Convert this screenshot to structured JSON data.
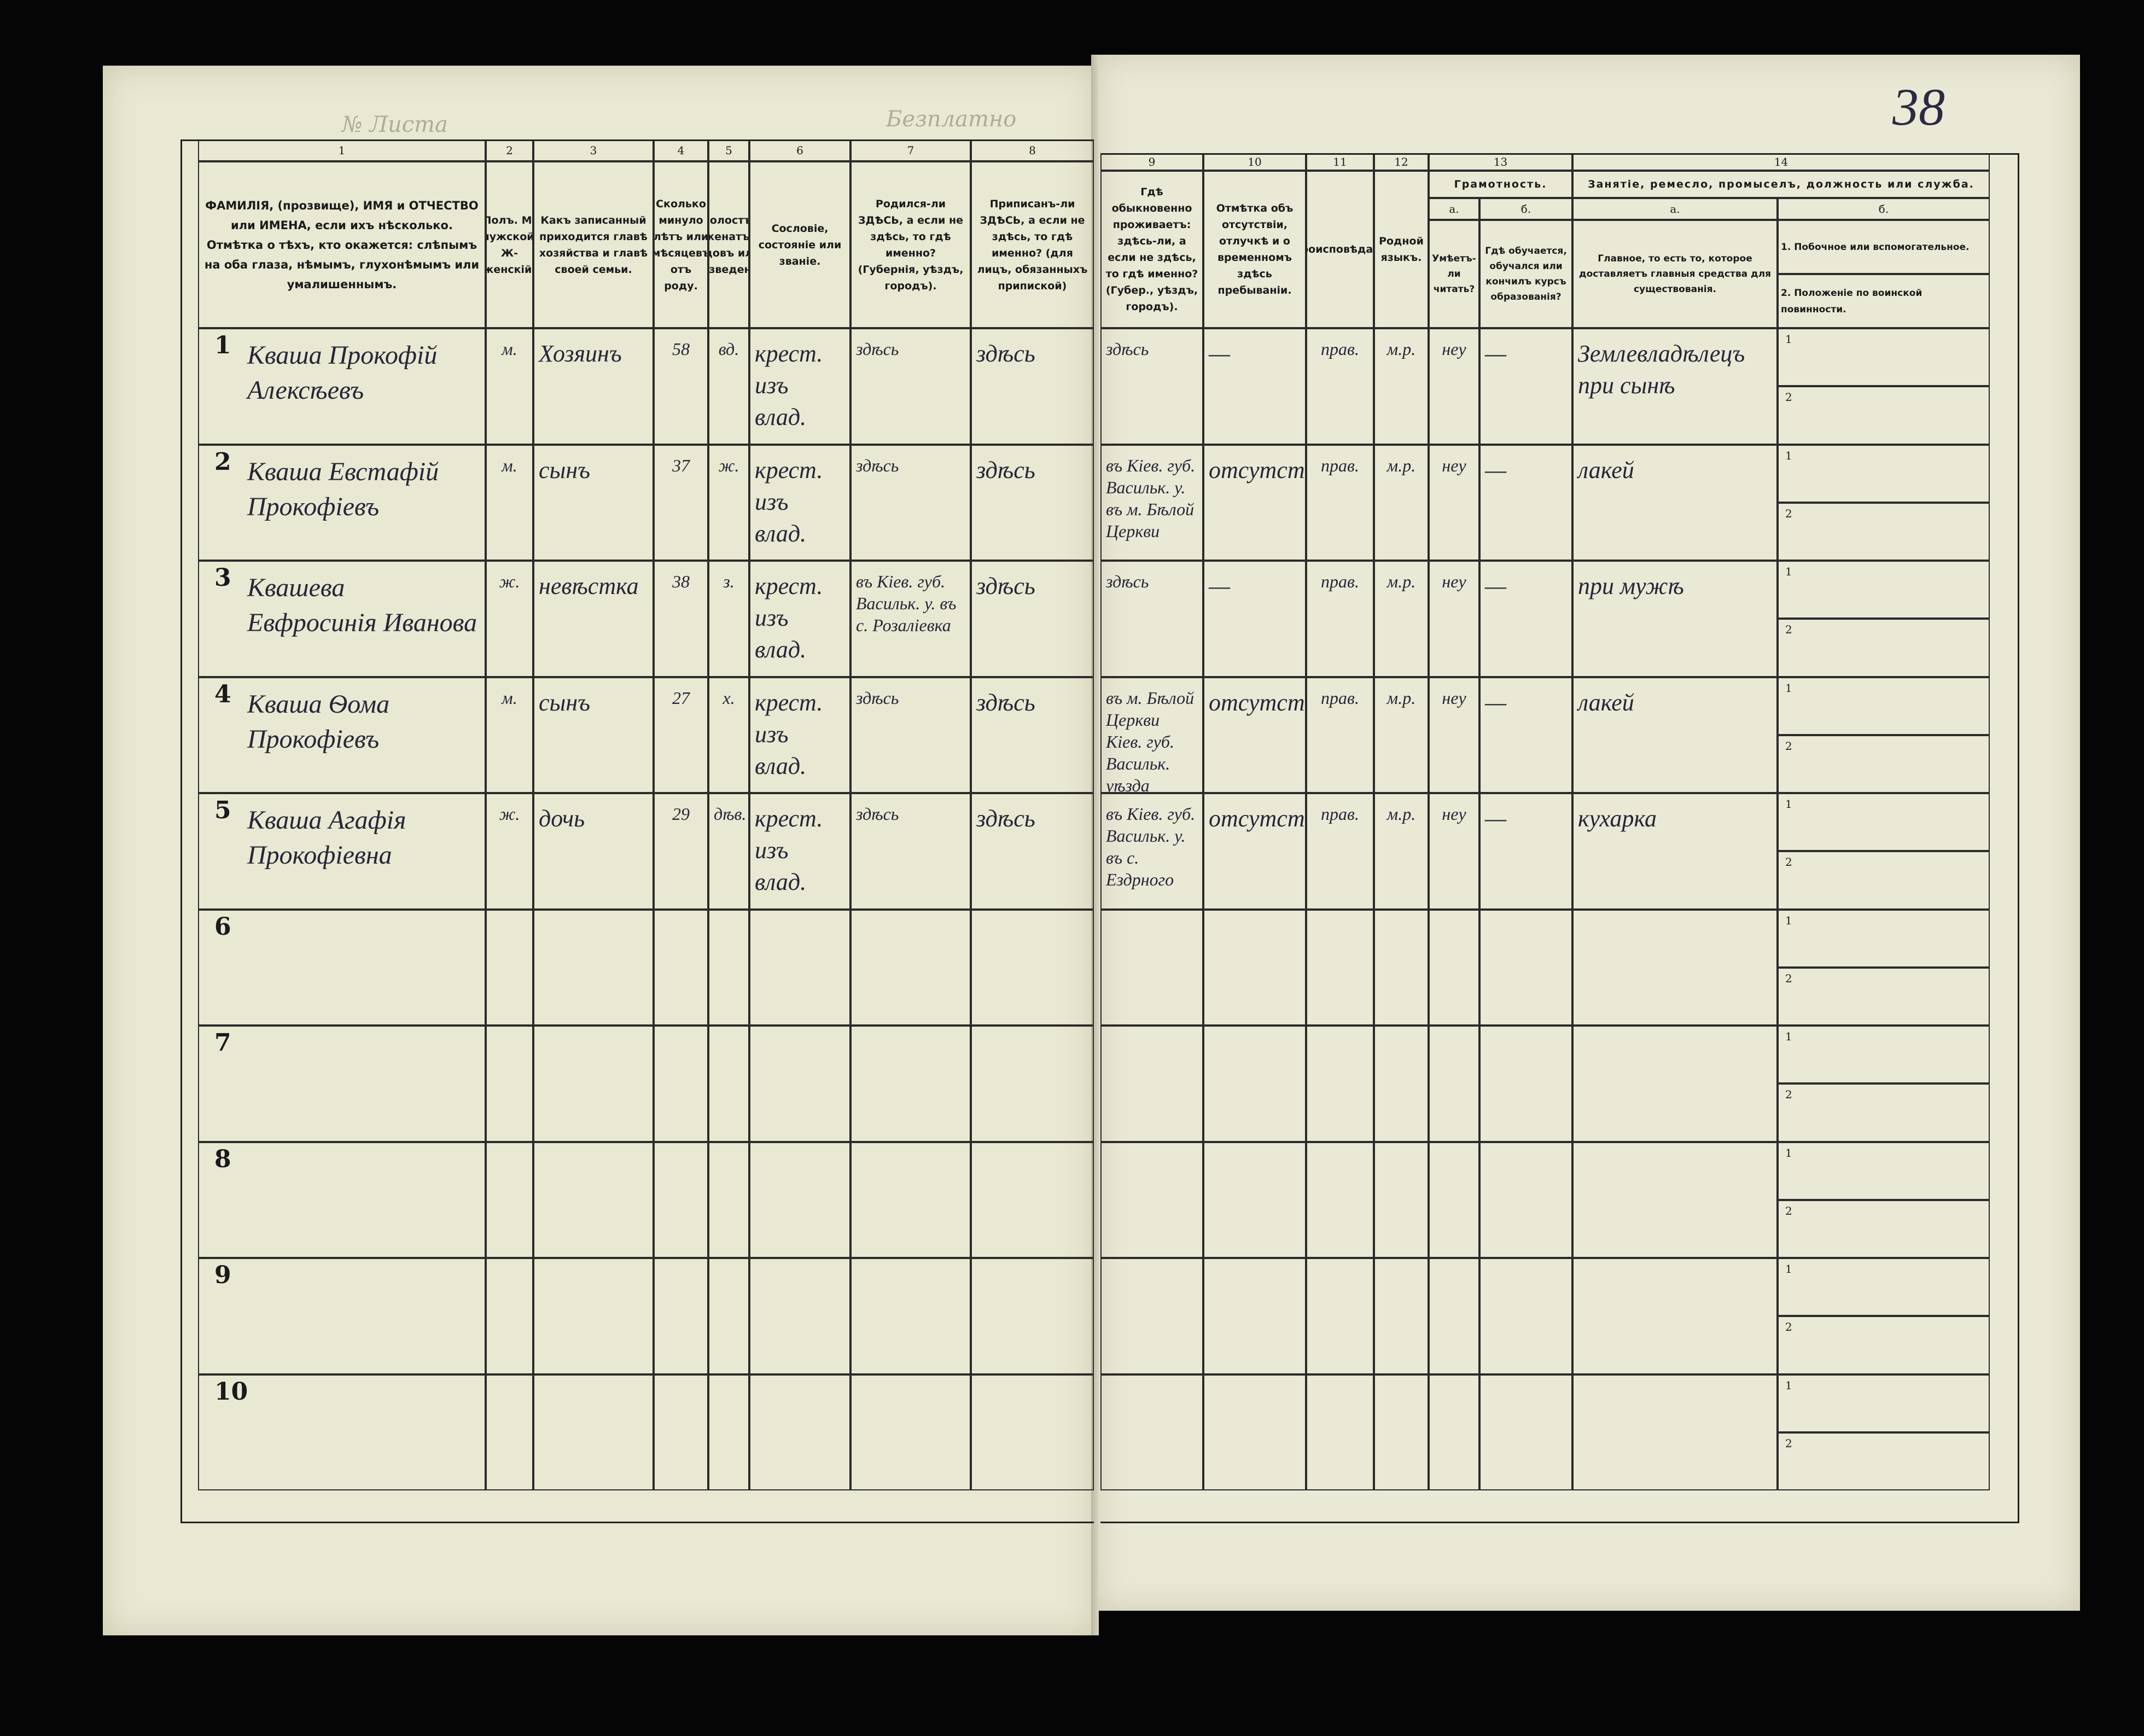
{
  "header": {
    "sheet_label": "№ Листа",
    "free_label": "Безплатно",
    "page_number": "38"
  },
  "columns": [
    {
      "number": "1",
      "header": "ФАМИЛІЯ, (прозвище), ИМЯ и ОТЧЕСТВО или ИМЕНА, если ихъ нѣсколько. Отмѣтка о тѣхъ, кто окажется: слѣпымъ на оба глаза, нѣмымъ, глухонѣмымъ или умалишеннымъ."
    },
    {
      "number": "2",
      "header": "Полъ. М-мужской. Ж-женскій."
    },
    {
      "number": "3",
      "header": "Какъ записанный приходится главѣ хозяйства и главѣ своей семьи."
    },
    {
      "number": "4",
      "header": "Сколько минуло лѣтъ или мѣсяцевъ отъ роду."
    },
    {
      "number": "5",
      "header": "Холостъ, женатъ, вдовъ или разведенъ."
    },
    {
      "number": "6",
      "header": "Сословіе, состояніе или званіе."
    },
    {
      "number": "7",
      "header": "Родился-ли ЗДѢСЬ, а если не здѣсь, то гдѣ именно? (Губернія, уѣздъ, городъ)."
    },
    {
      "number": "8",
      "header": "Приписанъ-ли ЗДѢСЬ, а если не здѣсь, то гдѣ именно? (для лицъ, обязанныхъ припиской)"
    },
    {
      "number": "9",
      "header": "Гдѣ обыкновенно проживаетъ: здѣсь-ли, а если не здѣсь, то гдѣ именно? (Губер., уѣздъ, городъ)."
    },
    {
      "number": "10",
      "header": "Отмѣтка объ отсутствіи, отлучкѣ и о временномъ здѣсь пребываніи."
    },
    {
      "number": "11",
      "header": "Вѣроисповѣданіе."
    },
    {
      "number": "12",
      "header": "Родной языкъ."
    },
    {
      "number": "13",
      "header": "Грамотность.",
      "sub": [
        {
          "letter": "а.",
          "header": "Умѣетъ-ли читать?"
        },
        {
          "letter": "б.",
          "header": "Гдѣ обучается, обучался или кончилъ курсъ образованія?"
        }
      ]
    },
    {
      "number": "14",
      "header": "Занятіе, ремесло, промыселъ, должность или служба.",
      "sub": [
        {
          "letter": "а.",
          "header": "Главное, то есть то, которое доставляетъ главныя средства для существованія."
        },
        {
          "letter": "б.",
          "headers": [
            "1. Побочное или вспомогательное.",
            "2. Положеніе по воинской повинности."
          ]
        }
      ]
    }
  ],
  "sub_labels": [
    "1",
    "2"
  ],
  "rows": [
    {
      "number": "1",
      "cells": [
        "Кваша Прокофій Алексѣевъ",
        "м.",
        "Хозяинъ",
        "58",
        "вд.",
        "крест. изъ влад.",
        "здѣсь",
        "здѣсь",
        "здѣсь",
        "—",
        "прав.",
        "м.р.",
        "неу",
        "—",
        "Землевладѣлецъ при сынѣ"
      ]
    },
    {
      "number": "2",
      "cells": [
        "Кваша Евстафій Прокофіевъ",
        "м.",
        "сынъ",
        "37",
        "ж.",
        "крест. изъ влад.",
        "здѣсь",
        "здѣсь",
        "въ Кiев. губ. Васильк. у. въ м. Бѣлой Церкви",
        "отсутст.",
        "прав.",
        "м.р.",
        "неу",
        "—",
        "лакей"
      ]
    },
    {
      "number": "3",
      "cells": [
        "Квашева Евфросинія Иванова",
        "ж.",
        "невѣстка",
        "38",
        "з.",
        "крест. изъ влад.",
        "въ Кiев. губ. Васильк. у. въ с. Розалiевка",
        "здѣсь",
        "здѣсь",
        "—",
        "прав.",
        "м.р.",
        "неу",
        "—",
        "при мужѣ"
      ]
    },
    {
      "number": "4",
      "cells": [
        "Кваша Ѳома Прокофіевъ",
        "м.",
        "сынъ",
        "27",
        "х.",
        "крест. изъ влад.",
        "здѣсь",
        "здѣсь",
        "въ м. Бѣлой Церкви Кiев. губ. Васильк. уѣзда",
        "отсутст.",
        "прав.",
        "м.р.",
        "неу",
        "—",
        "лакей"
      ]
    },
    {
      "number": "5",
      "cells": [
        "Кваша Агафія Прокофіевна",
        "ж.",
        "дочь",
        "29",
        "дѣв.",
        "крест. изъ влад.",
        "здѣсь",
        "здѣсь",
        "въ Кiев. губ. Васильк. у. въ с. Ездрного",
        "отсутст.",
        "прав.",
        "м.р.",
        "неу",
        "—",
        "кухарка"
      ]
    },
    {
      "number": "6"
    },
    {
      "number": "7"
    },
    {
      "number": "8"
    },
    {
      "number": "9"
    },
    {
      "number": "10"
    }
  ]
}
